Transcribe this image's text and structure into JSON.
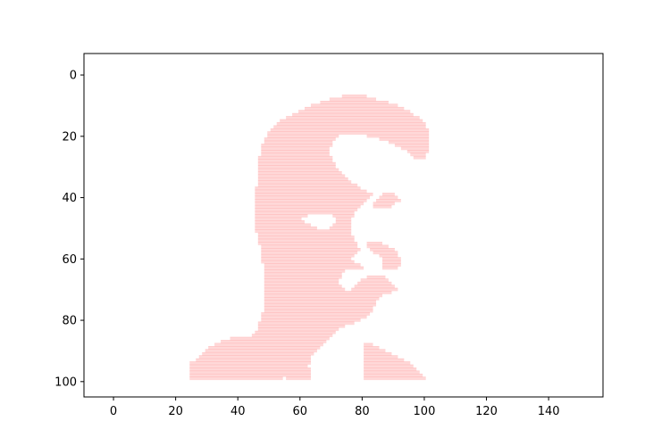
{
  "chart_data": {
    "type": "scatter",
    "title": "",
    "xlabel": "",
    "ylabel": "",
    "xlim": [
      -9.5,
      157.5
    ],
    "ylim": [
      105,
      -7
    ],
    "y_inverted": true,
    "grid": false,
    "legend": "none",
    "x_ticks": [
      0,
      20,
      40,
      60,
      80,
      100,
      120,
      140
    ],
    "y_ticks": [
      0,
      20,
      40,
      60,
      80,
      100
    ],
    "series": [
      {
        "color": "#ff9999",
        "description_of_shape": "",
        "row_step": 1,
        "rows": [
          {
            "y": 7,
            "segments": [
              [
                74,
                81
              ]
            ]
          },
          {
            "y": 8,
            "segments": [
              [
                70,
                84
              ]
            ]
          },
          {
            "y": 9,
            "segments": [
              [
                67,
                88
              ]
            ]
          },
          {
            "y": 10,
            "segments": [
              [
                64,
                91
              ]
            ]
          },
          {
            "y": 11,
            "segments": [
              [
                62,
                93
              ]
            ]
          },
          {
            "y": 12,
            "segments": [
              [
                60,
                95
              ]
            ]
          },
          {
            "y": 13,
            "segments": [
              [
                58,
                96
              ]
            ]
          },
          {
            "y": 14,
            "segments": [
              [
                56,
                98
              ]
            ]
          },
          {
            "y": 15,
            "segments": [
              [
                54,
                99
              ]
            ]
          },
          {
            "y": 16,
            "segments": [
              [
                53,
                100
              ]
            ]
          },
          {
            "y": 17,
            "segments": [
              [
                52,
                100
              ]
            ]
          },
          {
            "y": 18,
            "segments": [
              [
                51,
                101
              ]
            ]
          },
          {
            "y": 19,
            "segments": [
              [
                50,
                101
              ]
            ]
          },
          {
            "y": 20,
            "segments": [
              [
                50,
                72
              ],
              [
                82,
                101
              ]
            ]
          },
          {
            "y": 21,
            "segments": [
              [
                49,
                71
              ],
              [
                86,
                101
              ]
            ]
          },
          {
            "y": 22,
            "segments": [
              [
                49,
                70
              ],
              [
                89,
                101
              ]
            ]
          },
          {
            "y": 23,
            "segments": [
              [
                48,
                70
              ],
              [
                91,
                101
              ]
            ]
          },
          {
            "y": 24,
            "segments": [
              [
                48,
                69
              ],
              [
                93,
                101
              ]
            ]
          },
          {
            "y": 25,
            "segments": [
              [
                48,
                69
              ],
              [
                95,
                101
              ]
            ]
          },
          {
            "y": 26,
            "segments": [
              [
                48,
                69
              ],
              [
                96,
                100
              ]
            ]
          },
          {
            "y": 27,
            "segments": [
              [
                47,
                70
              ],
              [
                97,
                100
              ]
            ]
          },
          {
            "y": 28,
            "segments": [
              [
                47,
                70
              ]
            ]
          },
          {
            "y": 29,
            "segments": [
              [
                47,
                71
              ]
            ]
          },
          {
            "y": 30,
            "segments": [
              [
                47,
                71
              ]
            ]
          },
          {
            "y": 31,
            "segments": [
              [
                47,
                72
              ]
            ]
          },
          {
            "y": 32,
            "segments": [
              [
                47,
                73
              ]
            ]
          },
          {
            "y": 33,
            "segments": [
              [
                47,
                74
              ]
            ]
          },
          {
            "y": 34,
            "segments": [
              [
                47,
                75
              ]
            ]
          },
          {
            "y": 35,
            "segments": [
              [
                47,
                76
              ]
            ]
          },
          {
            "y": 36,
            "segments": [
              [
                47,
                78
              ]
            ]
          },
          {
            "y": 37,
            "segments": [
              [
                46,
                79
              ]
            ]
          },
          {
            "y": 38,
            "segments": [
              [
                46,
                81
              ]
            ]
          },
          {
            "y": 39,
            "segments": [
              [
                46,
                83
              ],
              [
                87,
                90
              ]
            ]
          },
          {
            "y": 40,
            "segments": [
              [
                46,
                82
              ],
              [
                86,
                91
              ]
            ]
          },
          {
            "y": 41,
            "segments": [
              [
                46,
                81
              ],
              [
                85,
                92
              ]
            ]
          },
          {
            "y": 42,
            "segments": [
              [
                46,
                80
              ],
              [
                84,
                90
              ]
            ]
          },
          {
            "y": 43,
            "segments": [
              [
                46,
                79
              ],
              [
                84,
                89
              ]
            ]
          },
          {
            "y": 44,
            "segments": [
              [
                46,
                78
              ]
            ]
          },
          {
            "y": 45,
            "segments": [
              [
                46,
                77
              ]
            ]
          },
          {
            "y": 46,
            "segments": [
              [
                46,
                62
              ],
              [
                71,
                77
              ]
            ]
          },
          {
            "y": 47,
            "segments": [
              [
                46,
                60
              ],
              [
                72,
                76
              ]
            ]
          },
          {
            "y": 48,
            "segments": [
              [
                46,
                61
              ],
              [
                72,
                76
              ]
            ]
          },
          {
            "y": 49,
            "segments": [
              [
                46,
                63
              ],
              [
                71,
                76
              ]
            ]
          },
          {
            "y": 50,
            "segments": [
              [
                46,
                65
              ],
              [
                70,
                76
              ]
            ]
          },
          {
            "y": 51,
            "segments": [
              [
                46,
                76
              ]
            ]
          },
          {
            "y": 52,
            "segments": [
              [
                47,
                76
              ]
            ]
          },
          {
            "y": 53,
            "segments": [
              [
                47,
                77
              ]
            ]
          },
          {
            "y": 54,
            "segments": [
              [
                47,
                77
              ]
            ]
          },
          {
            "y": 55,
            "segments": [
              [
                47,
                78
              ],
              [
                82,
                86
              ]
            ]
          },
          {
            "y": 56,
            "segments": [
              [
                48,
                78
              ],
              [
                82,
                88
              ]
            ]
          },
          {
            "y": 57,
            "segments": [
              [
                48,
                79
              ],
              [
                83,
                90
              ]
            ]
          },
          {
            "y": 58,
            "segments": [
              [
                48,
                78
              ],
              [
                84,
                91
              ]
            ]
          },
          {
            "y": 59,
            "segments": [
              [
                48,
                77
              ],
              [
                86,
                91
              ]
            ]
          },
          {
            "y": 60,
            "segments": [
              [
                48,
                76
              ],
              [
                87,
                92
              ]
            ]
          },
          {
            "y": 61,
            "segments": [
              [
                48,
                77
              ],
              [
                87,
                92
              ]
            ]
          },
          {
            "y": 62,
            "segments": [
              [
                49,
                79
              ],
              [
                87,
                92
              ]
            ]
          },
          {
            "y": 63,
            "segments": [
              [
                49,
                80
              ],
              [
                87,
                91
              ]
            ]
          },
          {
            "y": 64,
            "segments": [
              [
                49,
                74
              ]
            ]
          },
          {
            "y": 65,
            "segments": [
              [
                49,
                73
              ]
            ]
          },
          {
            "y": 66,
            "segments": [
              [
                49,
                73
              ],
              [
                82,
                87
              ]
            ]
          },
          {
            "y": 67,
            "segments": [
              [
                49,
                72
              ],
              [
                80,
                88
              ]
            ]
          },
          {
            "y": 68,
            "segments": [
              [
                49,
                72
              ],
              [
                79,
                89
              ]
            ]
          },
          {
            "y": 69,
            "segments": [
              [
                49,
                73
              ],
              [
                78,
                90
              ]
            ]
          },
          {
            "y": 70,
            "segments": [
              [
                49,
                74
              ],
              [
                77,
                91
              ]
            ]
          },
          {
            "y": 71,
            "segments": [
              [
                49,
                75
              ],
              [
                76,
                89
              ]
            ]
          },
          {
            "y": 72,
            "segments": [
              [
                49,
                86
              ]
            ]
          },
          {
            "y": 73,
            "segments": [
              [
                49,
                85
              ]
            ]
          },
          {
            "y": 74,
            "segments": [
              [
                49,
                84
              ]
            ]
          },
          {
            "y": 75,
            "segments": [
              [
                49,
                84
              ]
            ]
          },
          {
            "y": 76,
            "segments": [
              [
                49,
                83
              ]
            ]
          },
          {
            "y": 77,
            "segments": [
              [
                49,
                83
              ]
            ]
          },
          {
            "y": 78,
            "segments": [
              [
                48,
                82
              ]
            ]
          },
          {
            "y": 79,
            "segments": [
              [
                48,
                81
              ]
            ]
          },
          {
            "y": 80,
            "segments": [
              [
                48,
                79
              ]
            ]
          },
          {
            "y": 81,
            "segments": [
              [
                47,
                77
              ]
            ]
          },
          {
            "y": 82,
            "segments": [
              [
                47,
                74
              ]
            ]
          },
          {
            "y": 83,
            "segments": [
              [
                47,
                72
              ]
            ]
          },
          {
            "y": 84,
            "segments": [
              [
                46,
                71
              ]
            ]
          },
          {
            "y": 85,
            "segments": [
              [
                45,
                70
              ]
            ]
          },
          {
            "y": 86,
            "segments": [
              [
                38,
                69
              ]
            ]
          },
          {
            "y": 87,
            "segments": [
              [
                35,
                68
              ]
            ]
          },
          {
            "y": 88,
            "segments": [
              [
                33,
                67
              ],
              [
                81,
                83
              ]
            ]
          },
          {
            "y": 89,
            "segments": [
              [
                31,
                66
              ],
              [
                81,
                85
              ]
            ]
          },
          {
            "y": 90,
            "segments": [
              [
                30,
                65
              ],
              [
                81,
                87
              ]
            ]
          },
          {
            "y": 91,
            "segments": [
              [
                29,
                64
              ],
              [
                81,
                89
              ]
            ]
          },
          {
            "y": 92,
            "segments": [
              [
                28,
                63
              ],
              [
                81,
                91
              ]
            ]
          },
          {
            "y": 93,
            "segments": [
              [
                27,
                63
              ],
              [
                81,
                93
              ]
            ]
          },
          {
            "y": 94,
            "segments": [
              [
                25,
                63
              ],
              [
                81,
                95
              ]
            ]
          },
          {
            "y": 95,
            "segments": [
              [
                25,
                62
              ],
              [
                81,
                96
              ]
            ]
          },
          {
            "y": 96,
            "segments": [
              [
                25,
                63
              ],
              [
                81,
                97
              ]
            ]
          },
          {
            "y": 97,
            "segments": [
              [
                25,
                63
              ],
              [
                81,
                98
              ]
            ]
          },
          {
            "y": 98,
            "segments": [
              [
                25,
                63
              ],
              [
                81,
                99
              ]
            ]
          },
          {
            "y": 99,
            "segments": [
              [
                25,
                54
              ],
              [
                56,
                63
              ],
              [
                81,
                100
              ]
            ]
          }
        ]
      }
    ]
  }
}
